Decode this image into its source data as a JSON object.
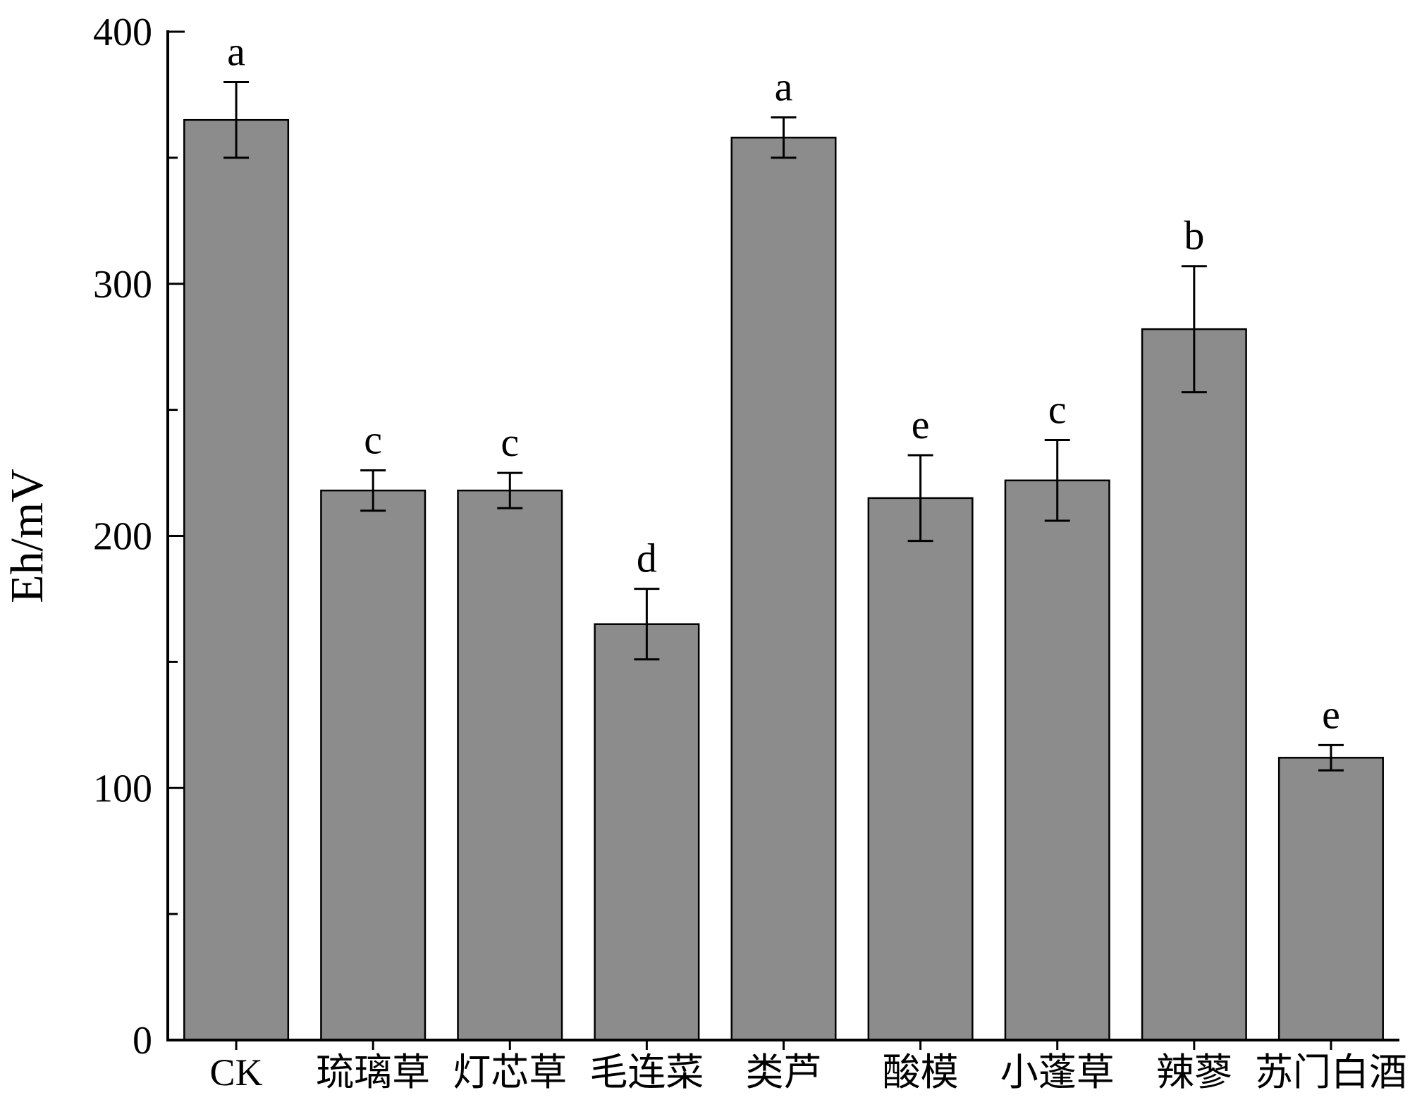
{
  "page": {
    "background": "#ffffff"
  },
  "chart_data": {
    "type": "bar",
    "title": "",
    "xlabel": "",
    "ylabel": "Eh/mV",
    "ylim": [
      0,
      400
    ],
    "y_major_ticks": [
      0,
      100,
      200,
      300,
      400
    ],
    "y_minor_step": 50,
    "grid": false,
    "legend": "none",
    "categories": [
      "CK",
      "琉璃草",
      "灯芯草",
      "毛连菜",
      "类芦",
      "酸模",
      "小蓬草",
      "辣蓼",
      "苏门白酒"
    ],
    "values": [
      365,
      218,
      218,
      165,
      358,
      215,
      222,
      282,
      112
    ],
    "errors": [
      15,
      8,
      7,
      14,
      8,
      17,
      16,
      25,
      5
    ],
    "sig_letters": [
      "a",
      "c",
      "c",
      "d",
      "a",
      "e",
      "c",
      "b",
      "e"
    ],
    "bar_color": "#8c8c8c",
    "bar_edge_color": "#000000",
    "error_bar_color": "#000000",
    "axis_color": "#000000"
  }
}
